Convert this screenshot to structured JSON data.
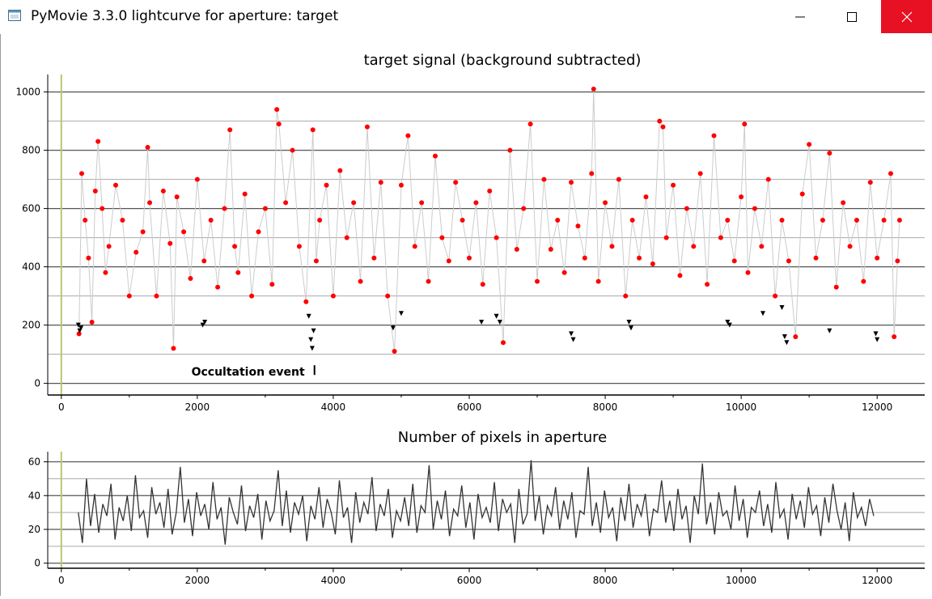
{
  "window": {
    "title": "PyMovie 3.3.0 lightcurve for aperture: target",
    "buttons": [
      "minimize-icon",
      "maximize-icon",
      "close-icon"
    ],
    "close_color": "#e81123"
  },
  "chart_data": [
    {
      "type": "scatter",
      "title": "target signal (background subtracted)",
      "xlabel": "",
      "ylabel": "",
      "xlim": [
        -200,
        12700
      ],
      "ylim": [
        -40,
        1060
      ],
      "xticks": [
        0,
        2000,
        4000,
        6000,
        8000,
        10000,
        12000
      ],
      "xtick_labels": [
        "0",
        "2000",
        "4000",
        "6000",
        "8000",
        "10000",
        "12000"
      ],
      "yticks": [
        0,
        200,
        400,
        600,
        800,
        1000
      ],
      "ytick_labels": [
        "0",
        "200",
        "400",
        "600",
        "800",
        "1000"
      ],
      "grid": true,
      "annotation": {
        "text": "Occultation event",
        "x": 3700,
        "y": 40
      },
      "series": [
        {
          "color": "#ff0000",
          "marker": "circle",
          "points": [
            [
              260,
              170
            ],
            [
              300,
              720
            ],
            [
              350,
              560
            ],
            [
              400,
              430
            ],
            [
              450,
              210
            ],
            [
              500,
              660
            ],
            [
              540,
              830
            ],
            [
              600,
              600
            ],
            [
              650,
              380
            ],
            [
              700,
              470
            ],
            [
              800,
              680
            ],
            [
              900,
              560
            ],
            [
              1000,
              300
            ],
            [
              1100,
              450
            ],
            [
              1200,
              520
            ],
            [
              1270,
              810
            ],
            [
              1300,
              620
            ],
            [
              1400,
              300
            ],
            [
              1500,
              660
            ],
            [
              1600,
              480
            ],
            [
              1650,
              120
            ],
            [
              1700,
              640
            ],
            [
              1800,
              520
            ],
            [
              1900,
              360
            ],
            [
              2000,
              700
            ],
            [
              2100,
              420
            ],
            [
              2200,
              560
            ],
            [
              2300,
              330
            ],
            [
              2400,
              600
            ],
            [
              2480,
              870
            ],
            [
              2550,
              470
            ],
            [
              2600,
              380
            ],
            [
              2700,
              650
            ],
            [
              2800,
              300
            ],
            [
              2900,
              520
            ],
            [
              3000,
              600
            ],
            [
              3100,
              340
            ],
            [
              3170,
              940
            ],
            [
              3200,
              890
            ],
            [
              3300,
              620
            ],
            [
              3400,
              800
            ],
            [
              3500,
              470
            ],
            [
              3600,
              280
            ],
            [
              3700,
              870
            ],
            [
              3750,
              420
            ],
            [
              3800,
              560
            ],
            [
              3900,
              680
            ],
            [
              4000,
              300
            ],
            [
              4100,
              730
            ],
            [
              4200,
              500
            ],
            [
              4300,
              620
            ],
            [
              4400,
              350
            ],
            [
              4500,
              880
            ],
            [
              4600,
              430
            ],
            [
              4700,
              690
            ],
            [
              4800,
              300
            ],
            [
              4900,
              110
            ],
            [
              5000,
              680
            ],
            [
              5100,
              850
            ],
            [
              5200,
              470
            ],
            [
              5300,
              620
            ],
            [
              5400,
              350
            ],
            [
              5500,
              780
            ],
            [
              5600,
              500
            ],
            [
              5700,
              420
            ],
            [
              5800,
              690
            ],
            [
              5900,
              560
            ],
            [
              6000,
              430
            ],
            [
              6100,
              620
            ],
            [
              6200,
              340
            ],
            [
              6300,
              660
            ],
            [
              6400,
              500
            ],
            [
              6500,
              140
            ],
            [
              6600,
              800
            ],
            [
              6700,
              460
            ],
            [
              6800,
              600
            ],
            [
              6900,
              890
            ],
            [
              7000,
              350
            ],
            [
              7100,
              700
            ],
            [
              7200,
              460
            ],
            [
              7300,
              560
            ],
            [
              7400,
              380
            ],
            [
              7500,
              690
            ],
            [
              7600,
              540
            ],
            [
              7700,
              430
            ],
            [
              7800,
              720
            ],
            [
              7830,
              1010
            ],
            [
              7900,
              350
            ],
            [
              8000,
              620
            ],
            [
              8100,
              470
            ],
            [
              8200,
              700
            ],
            [
              8300,
              300
            ],
            [
              8400,
              560
            ],
            [
              8500,
              430
            ],
            [
              8600,
              640
            ],
            [
              8700,
              410
            ],
            [
              8800,
              900
            ],
            [
              8850,
              880
            ],
            [
              8900,
              500
            ],
            [
              9000,
              680
            ],
            [
              9100,
              370
            ],
            [
              9200,
              600
            ],
            [
              9300,
              470
            ],
            [
              9400,
              720
            ],
            [
              9500,
              340
            ],
            [
              9600,
              850
            ],
            [
              9700,
              500
            ],
            [
              9800,
              560
            ],
            [
              9900,
              420
            ],
            [
              10000,
              640
            ],
            [
              10050,
              890
            ],
            [
              10100,
              380
            ],
            [
              10200,
              600
            ],
            [
              10300,
              470
            ],
            [
              10400,
              700
            ],
            [
              10500,
              300
            ],
            [
              10600,
              560
            ],
            [
              10700,
              420
            ],
            [
              10800,
              160
            ],
            [
              10900,
              650
            ],
            [
              11000,
              820
            ],
            [
              11100,
              430
            ],
            [
              11200,
              560
            ],
            [
              11300,
              790
            ],
            [
              11400,
              330
            ],
            [
              11500,
              620
            ],
            [
              11600,
              470
            ],
            [
              11700,
              560
            ],
            [
              11800,
              350
            ],
            [
              11900,
              690
            ],
            [
              12000,
              430
            ],
            [
              12100,
              560
            ],
            [
              12200,
              720
            ],
            [
              12250,
              160
            ],
            [
              12300,
              420
            ],
            [
              12330,
              560
            ]
          ]
        },
        {
          "color": "#000000",
          "marker": "triangle-down",
          "points": [
            [
              250,
              200
            ],
            [
              270,
              180
            ],
            [
              290,
              190
            ],
            [
              2080,
              200
            ],
            [
              2110,
              210
            ],
            [
              3640,
              230
            ],
            [
              3670,
              150
            ],
            [
              3690,
              120
            ],
            [
              3710,
              180
            ],
            [
              4880,
              190
            ],
            [
              5000,
              240
            ],
            [
              6180,
              210
            ],
            [
              6400,
              230
            ],
            [
              6450,
              210
            ],
            [
              7500,
              170
            ],
            [
              7530,
              150
            ],
            [
              8350,
              210
            ],
            [
              8380,
              190
            ],
            [
              9800,
              210
            ],
            [
              9830,
              200
            ],
            [
              10320,
              240
            ],
            [
              10600,
              260
            ],
            [
              10640,
              160
            ],
            [
              10670,
              140
            ],
            [
              11300,
              180
            ],
            [
              11980,
              170
            ],
            [
              12000,
              150
            ]
          ]
        }
      ]
    },
    {
      "type": "line",
      "title": "Number of pixels in aperture",
      "xlabel": "",
      "ylabel": "",
      "xlim": [
        -200,
        12700
      ],
      "ylim": [
        -3,
        66
      ],
      "xticks": [
        0,
        2000,
        4000,
        6000,
        8000,
        10000,
        12000
      ],
      "xtick_labels": [
        "0",
        "2000",
        "4000",
        "6000",
        "8000",
        "10000",
        "12000"
      ],
      "yticks": [
        0,
        20,
        40,
        60
      ],
      "ytick_labels": [
        "0",
        "20",
        "40",
        "60"
      ],
      "grid": true,
      "series": [
        {
          "color": "#333333",
          "x_start": 250,
          "x_step": 60,
          "values": [
            30,
            12,
            50,
            22,
            41,
            18,
            35,
            28,
            47,
            14,
            33,
            25,
            40,
            19,
            52,
            27,
            31,
            15,
            45,
            29,
            36,
            21,
            44,
            17,
            30,
            57,
            24,
            38,
            16,
            42,
            28,
            35,
            20,
            48,
            26,
            33,
            11,
            39,
            30,
            23,
            46,
            19,
            34,
            27,
            41,
            14,
            37,
            25,
            31,
            55,
            22,
            43,
            18,
            36,
            29,
            40,
            13,
            34,
            26,
            45,
            21,
            38,
            30,
            17,
            49,
            27,
            33,
            12,
            42,
            24,
            36,
            29,
            51,
            19,
            35,
            28,
            44,
            15,
            31,
            25,
            39,
            22,
            47,
            18,
            34,
            30,
            58,
            20,
            37,
            26,
            43,
            16,
            32,
            28,
            46,
            21,
            36,
            14,
            41,
            27,
            33,
            24,
            48,
            19,
            38,
            30,
            35,
            12,
            44,
            23,
            29,
            61,
            25,
            40,
            17,
            34,
            28,
            45,
            20,
            37,
            26,
            42,
            15,
            31,
            29,
            57,
            22,
            36,
            18,
            43,
            27,
            33,
            13,
            39,
            25,
            47,
            21,
            35,
            28,
            41,
            16,
            32,
            30,
            49,
            24,
            37,
            19,
            44,
            26,
            34,
            12,
            40,
            29,
            59,
            23,
            36,
            17,
            42,
            28,
            31,
            20,
            46,
            25,
            38,
            15,
            33,
            30,
            43,
            22,
            35,
            18,
            48,
            27,
            32,
            14,
            41,
            26,
            37,
            21,
            45,
            29,
            34,
            16,
            39,
            24,
            47,
            31,
            20,
            36,
            13,
            42,
            27,
            33,
            22,
            38,
            28
          ]
        }
      ]
    }
  ]
}
